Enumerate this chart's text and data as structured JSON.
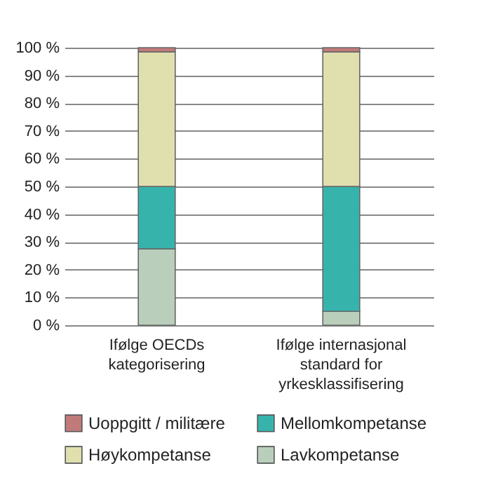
{
  "chart_data": {
    "type": "bar",
    "stacked": true,
    "categories": [
      "Ifølge OECDs kategorisering",
      "Ifølge internasjonal standard for yrkesklassifisering"
    ],
    "series": [
      {
        "name": "Lavkompetanse",
        "color": "#b9cfbb",
        "values": [
          27.5,
          5
        ]
      },
      {
        "name": "Mellomkompetanse",
        "color": "#36b4ac",
        "values": [
          22.5,
          45
        ]
      },
      {
        "name": "Høykompetanse",
        "color": "#e0dfae",
        "values": [
          48.5,
          48.5
        ]
      },
      {
        "name": "Uoppgitt / militære",
        "color": "#c07a7a",
        "values": [
          1.5,
          1.5
        ]
      }
    ],
    "ylim": [
      0,
      100
    ],
    "yticks": [
      {
        "value": 0,
        "label": "0 %"
      },
      {
        "value": 10,
        "label": "10 %"
      },
      {
        "value": 20,
        "label": "20 %"
      },
      {
        "value": 30,
        "label": "30 %"
      },
      {
        "value": 40,
        "label": "40 %"
      },
      {
        "value": 50,
        "label": "50 %"
      },
      {
        "value": 60,
        "label": "60 %"
      },
      {
        "value": 70,
        "label": "70 %"
      },
      {
        "value": 80,
        "label": "80 %"
      },
      {
        "value": 90,
        "label": "90 %"
      },
      {
        "value": 100,
        "label": "100 %"
      }
    ],
    "grid": true,
    "legend": "bottom"
  }
}
